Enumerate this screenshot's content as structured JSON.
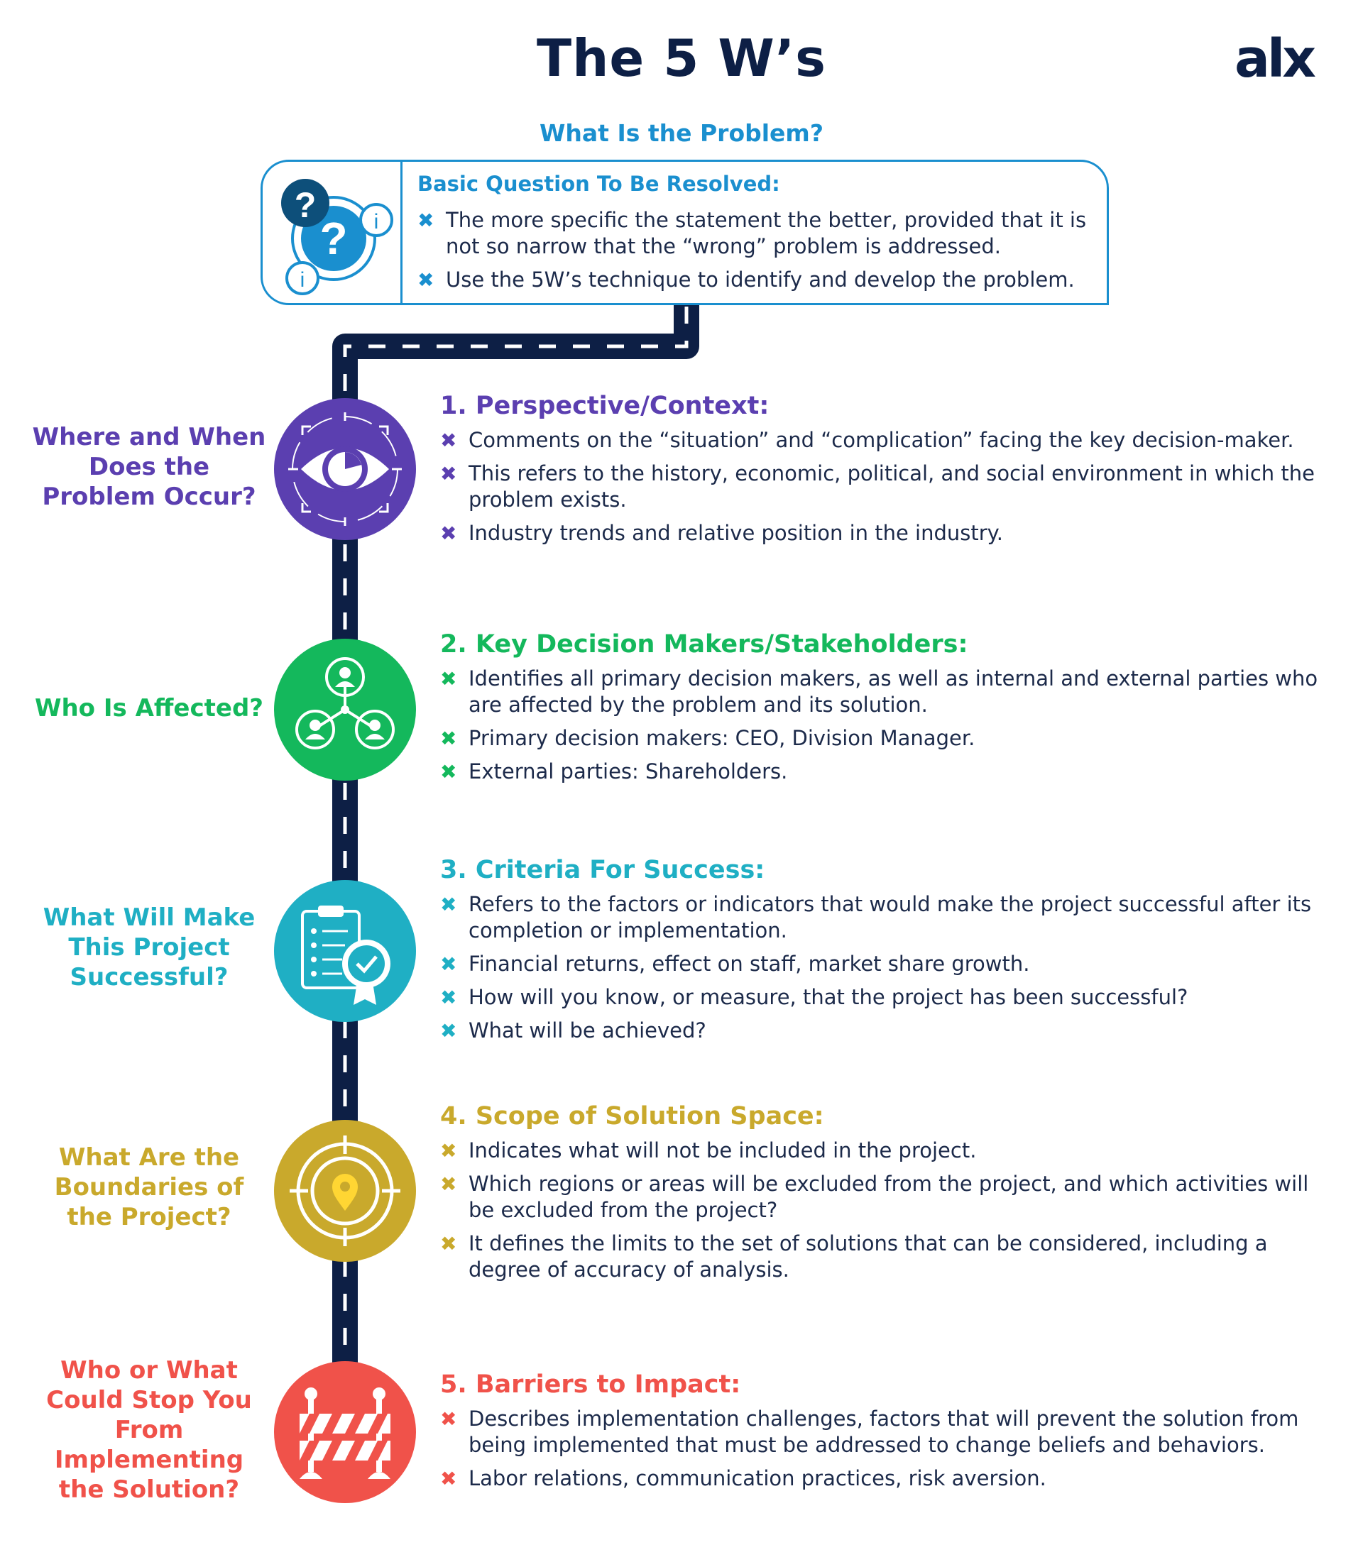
{
  "title": "The 5 W’s",
  "logo": "alx",
  "problem": {
    "heading": "What Is the Problem?",
    "subheading": "Basic Question To Be Resolved:",
    "bullets": [
      "The more specific the statement the better, provided that it is not so narrow that the “wrong” problem is addressed.",
      "Use the 5W’s technique to identify and develop the problem."
    ],
    "color": "#1a8fcf"
  },
  "steps": [
    {
      "question": "Where and When Does the Problem Occur?",
      "title": "1. Perspective/Context:",
      "color": "#5b3fb0",
      "icon": "eye-icon",
      "bullets": [
        "Comments on the “situation” and “complication” facing the key decision-maker.",
        "This refers to the history, economic, political, and social environment in which the problem exists.",
        "Industry trends and relative position in the industry."
      ]
    },
    {
      "question": "Who Is Affected?",
      "title": "2. Key Decision Makers/Stakeholders:",
      "color": "#14b85c",
      "icon": "stakeholders-icon",
      "bullets": [
        "Identifies all primary decision makers, as well as internal and external parties who are affected by the problem and its solution.",
        "Primary decision makers: CEO, Division Manager.",
        "External parties: Shareholders."
      ]
    },
    {
      "question": "What Will Make This Project Successful?",
      "title": "3. Criteria For Success:",
      "color": "#1fafc4",
      "icon": "checklist-badge-icon",
      "bullets": [
        "Refers to the factors or indicators that would make the project successful after its completion or implementation.",
        "Financial returns, effect on staff, market share growth.",
        "How will you know, or measure, that the project has been successful?",
        "What will be achieved?"
      ]
    },
    {
      "question": "What Are the Boundaries of the Project?",
      "title": "4. Scope of Solution Space:",
      "color": "#c9a92c",
      "icon": "target-pin-icon",
      "bullets": [
        "Indicates what will not be included in the project.",
        "Which regions or areas will be excluded from the project, and which activities will be excluded from the project?",
        "It defines the limits to the set of solutions that can be considered, including a degree of accuracy of analysis."
      ]
    },
    {
      "question": "Who or What Could Stop You From Implementing the Solution?",
      "title": "5. Barriers to Impact:",
      "color": "#f0524a",
      "icon": "barrier-icon",
      "bullets": [
        "Describes implementation challenges, factors that will prevent the solution from being implemented that must be addressed to change beliefs and behaviors.",
        "Labor relations, communication practices, risk aversion."
      ]
    }
  ]
}
